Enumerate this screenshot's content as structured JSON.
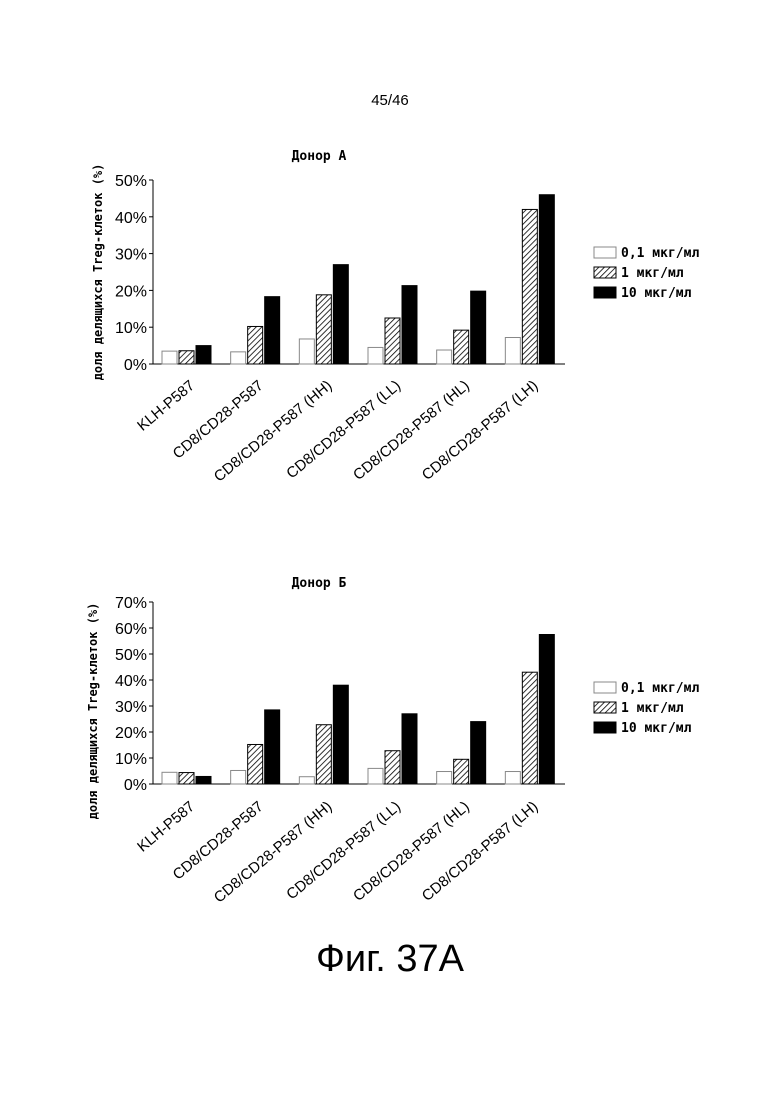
{
  "page": {
    "number": "45/46",
    "caption": "Фиг. 37А"
  },
  "colors": {
    "low": "#ffffff",
    "mid_hatch": "#000000",
    "high": "#000000"
  },
  "chart_data": [
    {
      "type": "bar",
      "title": "Донор А",
      "ylabel": "доля делящихся Treg-клеток (%)",
      "xlabel": "",
      "ylim": [
        0,
        50
      ],
      "yticks": [
        "0%",
        "10%",
        "20%",
        "30%",
        "40%",
        "50%"
      ],
      "categories": [
        "KLH-P587",
        "CD8/CD28-P587",
        "CD8/CD28-P587 (HH)",
        "CD8/CD28-P587 (LL)",
        "CD8/CD28-P587 (HL)",
        "CD8/CD28-P587 (LH)"
      ],
      "legend_position": "right",
      "series": [
        {
          "name": "0,1 мкг/мл",
          "values": [
            3.5,
            3.3,
            6.8,
            4.5,
            3.8,
            7.2
          ]
        },
        {
          "name": "1 мкг/мл",
          "values": [
            3.6,
            10.2,
            18.8,
            12.5,
            9.2,
            42.0
          ]
        },
        {
          "name": "10 мкг/мл",
          "values": [
            5.0,
            18.3,
            27.0,
            21.3,
            19.8,
            46.0
          ]
        }
      ]
    },
    {
      "type": "bar",
      "title": "Донор Б",
      "ylabel": "доля делящихся Treg-клеток (%)",
      "xlabel": "",
      "ylim": [
        0,
        70
      ],
      "yticks": [
        "0%",
        "10%",
        "20%",
        "30%",
        "40%",
        "50%",
        "60%",
        "70%"
      ],
      "categories": [
        "KLH-P587",
        "CD8/CD28-P587",
        "CD8/CD28-P587 (HH)",
        "CD8/CD28-P587 (LL)",
        "CD8/CD28-P587 (HL)",
        "CD8/CD28-P587 (LH)"
      ],
      "legend_position": "right",
      "series": [
        {
          "name": "0,1 мкг/мл",
          "values": [
            4.5,
            5.2,
            2.8,
            6.0,
            4.8,
            4.8
          ]
        },
        {
          "name": "1 мкг/мл",
          "values": [
            4.4,
            15.2,
            22.8,
            12.8,
            9.5,
            43.0
          ]
        },
        {
          "name": "10 мкг/мл",
          "values": [
            2.9,
            28.5,
            38.0,
            27.0,
            24.0,
            57.5
          ]
        }
      ]
    }
  ]
}
